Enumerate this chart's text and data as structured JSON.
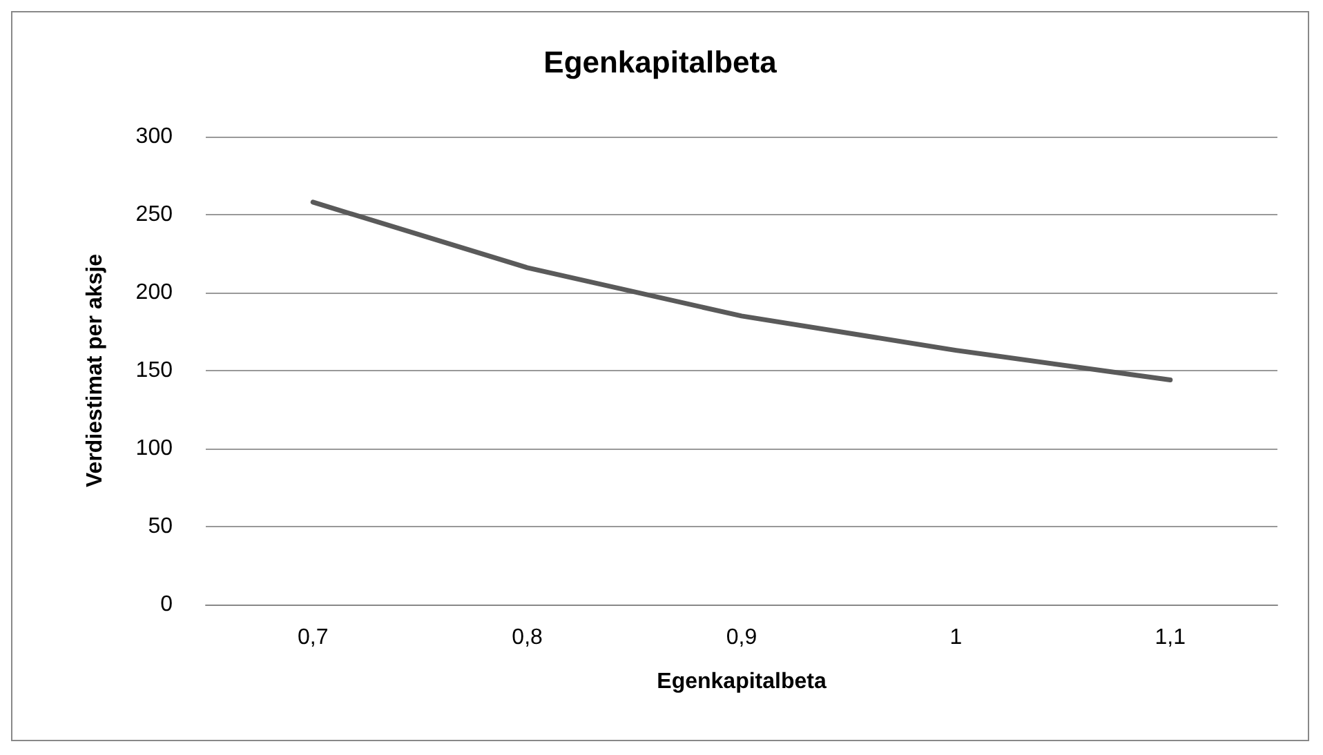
{
  "chart_data": {
    "type": "line",
    "title": "Egenkapitalbeta",
    "xlabel": "Egenkapitalbeta",
    "ylabel": "Verdiestimat per aksje",
    "categories": [
      "0,7",
      "0,8",
      "0,9",
      "1",
      "1,1"
    ],
    "series": [
      {
        "color": "#5a5a5a",
        "values": [
          258,
          216,
          185,
          163,
          144
        ]
      }
    ],
    "ylim": [
      0,
      300
    ],
    "yticks": [
      0,
      50,
      100,
      150,
      200,
      250,
      300
    ],
    "grid": "y",
    "marker": "none",
    "line_style": "solid"
  }
}
